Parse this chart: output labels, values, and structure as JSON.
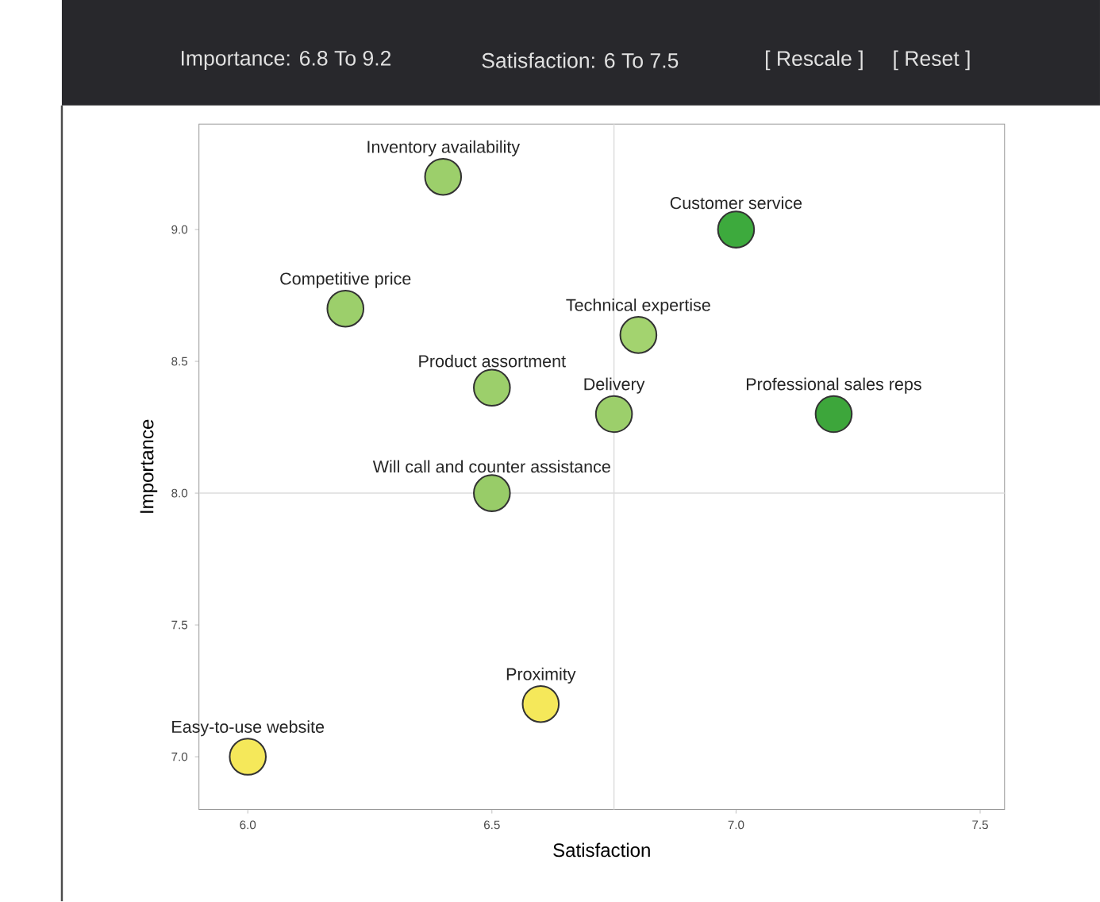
{
  "chart_data": {
    "type": "scatter",
    "xlabel": "Satisfaction",
    "ylabel": "Importance",
    "x": [
      6.4,
      7.0,
      6.2,
      6.8,
      6.5,
      6.75,
      7.2,
      6.5,
      6.6,
      6.0
    ],
    "values": [
      9.2,
      9.0,
      8.7,
      8.6,
      8.4,
      8.3,
      8.3,
      8.0,
      7.2,
      7.0
    ],
    "colors": [
      "#9ccf6b",
      "#3daa3d",
      "#9ccf6b",
      "#a3d36f",
      "#9ccf6b",
      "#9ccf6b",
      "#3da63b",
      "#98cc68",
      "#f5e85a",
      "#f5e85a"
    ],
    "marker": "circle",
    "xlim": [
      5.9,
      7.55
    ],
    "ylim": [
      6.8,
      9.4
    ],
    "xticks": [
      {
        "value": 6,
        "label": "6.0"
      },
      {
        "value": 6.5,
        "label": "6.5"
      },
      {
        "value": 7,
        "label": "7.0"
      },
      {
        "value": 7.5,
        "label": "7.5"
      }
    ],
    "yticks": [
      {
        "value": 7,
        "label": "7.0"
      },
      {
        "value": 7.5,
        "label": "7.5"
      },
      {
        "value": 8,
        "label": "8.0"
      },
      {
        "value": 8.5,
        "label": "8.5"
      },
      {
        "value": 9,
        "label": "9.0"
      }
    ],
    "ref_lines": [
      {
        "axis": "x",
        "value": 6.75,
        "color": "#dddddd"
      },
      {
        "axis": "y",
        "value": 8.0,
        "color": "#dddddd"
      }
    ],
    "annotations": [
      "Importance: 6.8 To 9.2",
      "Satisfaction: 6 To 7.5",
      "[ Rescale ]",
      "[ Reset ]",
      {
        "text": "Inventory availability",
        "x": 6.4,
        "y": 9.2
      },
      {
        "text": "Customer service",
        "x": 7.0,
        "y": 9.0
      },
      {
        "text": "Competitive price",
        "x": 6.2,
        "y": 8.7
      },
      {
        "text": "Technical expertise",
        "x": 6.8,
        "y": 8.6
      },
      {
        "text": "Product assortment",
        "x": 6.5,
        "y": 8.4
      },
      {
        "text": "Delivery",
        "x": 6.75,
        "y": 8.3
      },
      {
        "text": "Professional sales reps",
        "x": 7.2,
        "y": 8.3
      },
      {
        "text": "Will call and counter assistance",
        "x": 6.5,
        "y": 8.0
      },
      {
        "text": "Proximity",
        "x": 6.6,
        "y": 7.2
      },
      {
        "text": "Easy-to-use website",
        "x": 6.0,
        "y": 7.0
      }
    ]
  }
}
